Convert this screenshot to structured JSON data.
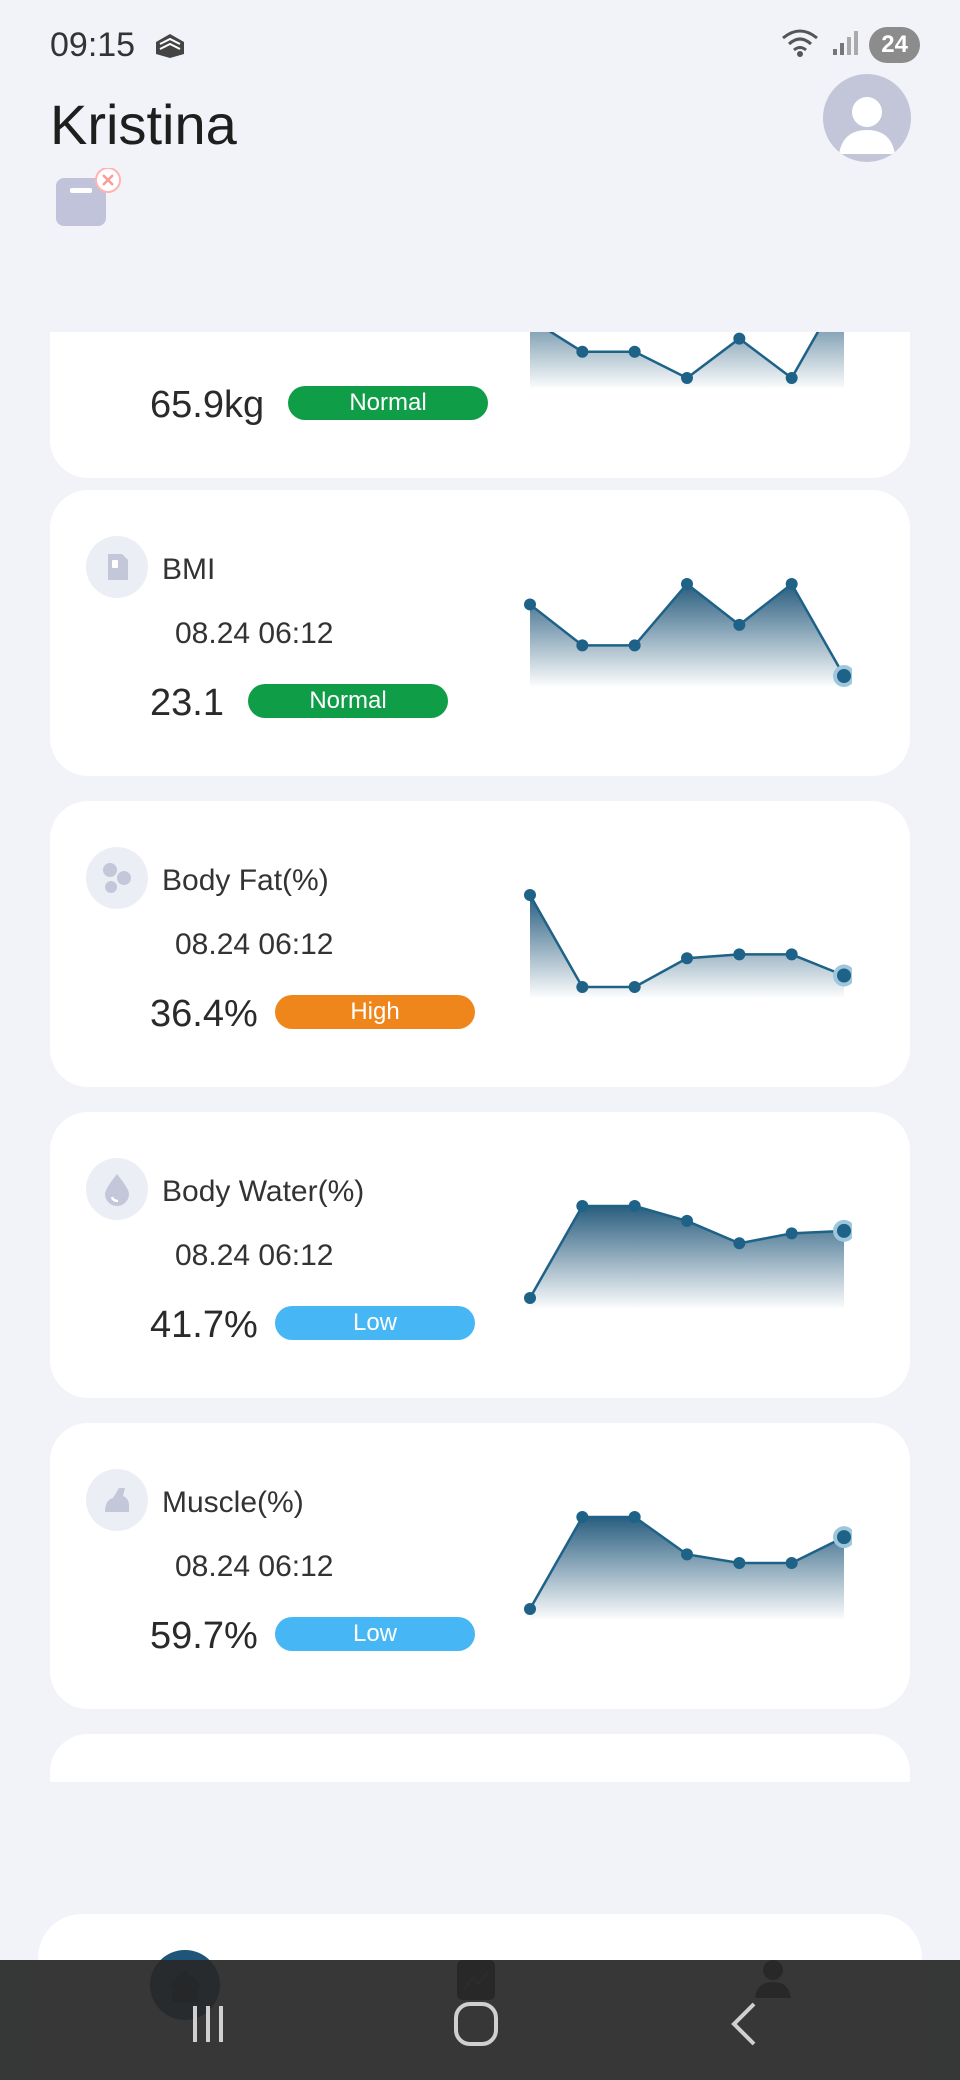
{
  "status_bar": {
    "time": "09:15",
    "battery": "24",
    "icons": [
      "notification-icon",
      "wifi-icon",
      "signal-icon",
      "battery-icon"
    ]
  },
  "header": {
    "user_name": "Kristina",
    "avatar_icon": "avatar-icon",
    "device_icon": "scale-disconnected-icon"
  },
  "metrics": [
    {
      "id": "weight",
      "title": "",
      "date": "",
      "value": "65.9kg",
      "status": "Normal",
      "status_color": "#0f9d48",
      "icon": "scale-icon",
      "chart_data": {
        "type": "area",
        "values": [
          0.45,
          0.2,
          0.2,
          0.0,
          0.3,
          0.0,
          0.7
        ]
      }
    },
    {
      "id": "bmi",
      "title": "BMI",
      "date": "08.24 06:12",
      "value": "23.1",
      "status": "Normal",
      "status_color": "#0f9d48",
      "icon": "bmi-icon",
      "chart_data": {
        "type": "area",
        "values": [
          23.4,
          23.0,
          23.0,
          23.6,
          23.2,
          23.6,
          22.7
        ]
      }
    },
    {
      "id": "body_fat",
      "title": "Body Fat(%)",
      "date": "08.24 06:12",
      "value": "36.4%",
      "status": "High",
      "status_color": "#ef861c",
      "icon": "fat-icon",
      "chart_data": {
        "type": "area",
        "values": [
          40.0,
          35.2,
          35.2,
          36.7,
          36.9,
          36.9,
          35.8
        ]
      }
    },
    {
      "id": "body_water",
      "title": "Body Water(%)",
      "date": "08.24 06:12",
      "value": "41.7%",
      "status": "Low",
      "status_color": "#47b6f5",
      "icon": "water-drop-icon",
      "chart_data": {
        "type": "area",
        "values": [
          39.0,
          42.7,
          42.7,
          42.1,
          41.2,
          41.6,
          41.7
        ]
      }
    },
    {
      "id": "muscle",
      "title": "Muscle(%)",
      "date": "08.24 06:12",
      "value": "59.7%",
      "status": "Low",
      "status_color": "#47b6f5",
      "icon": "muscle-arm-icon",
      "chart_data": {
        "type": "area",
        "values": [
          57.2,
          60.4,
          60.4,
          59.1,
          58.8,
          58.8,
          59.7
        ]
      }
    }
  ],
  "bottom_nav": {
    "tabs": [
      {
        "id": "home",
        "icon": "home-icon",
        "active": true
      },
      {
        "id": "trend",
        "icon": "trend-icon",
        "active": false
      },
      {
        "id": "profile",
        "icon": "profile-icon",
        "active": false
      }
    ]
  },
  "system_nav": [
    "recents-icon",
    "home-circle-icon",
    "back-icon"
  ],
  "colors": {
    "chart_line": "#1e6288",
    "chart_fill_top": "#1e5578",
    "background": "#f1f3f8"
  }
}
